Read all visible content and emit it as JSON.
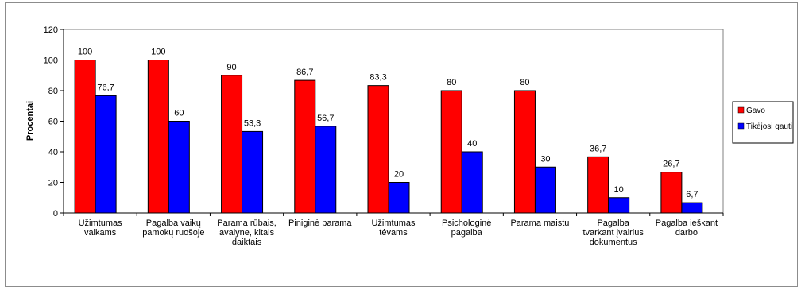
{
  "chart_data": {
    "type": "bar",
    "title": "",
    "xlabel": "",
    "ylabel": "Procentai",
    "ylim": [
      0,
      120
    ],
    "yticks": [
      0,
      20,
      40,
      60,
      80,
      100,
      120
    ],
    "grid": false,
    "legend_position": "right",
    "categories": [
      [
        "Užimtumas",
        "vaikams"
      ],
      [
        "Pagalba vaikų",
        "pamokų ruošoje"
      ],
      [
        "Parama rūbais,",
        "avalyne, kitais",
        "daiktais"
      ],
      [
        "Piniginė parama"
      ],
      [
        "Užimtumas",
        "tėvams"
      ],
      [
        "Psichologinė",
        "pagalba"
      ],
      [
        "Parama maistu"
      ],
      [
        "Pagalba",
        "tvarkant įvairius",
        "dokumentus"
      ],
      [
        "Pagalba ieškant",
        "darbo"
      ]
    ],
    "series": [
      {
        "name": "Gavo",
        "color": "#ff0000",
        "values": [
          100,
          100,
          90,
          86.7,
          83.3,
          80,
          80,
          36.7,
          26.7
        ],
        "labels": [
          "100",
          "100",
          "90",
          "86,7",
          "83,3",
          "80",
          "80",
          "36,7",
          "26,7"
        ]
      },
      {
        "name": "Tikėjosi gauti",
        "color": "#0000ff",
        "values": [
          76.7,
          60,
          53.3,
          56.7,
          20,
          40,
          30,
          10,
          6.7
        ],
        "labels": [
          "76,7",
          "60",
          "53,3",
          "56,7",
          "20",
          "40",
          "30",
          "10",
          "6,7"
        ]
      }
    ]
  }
}
